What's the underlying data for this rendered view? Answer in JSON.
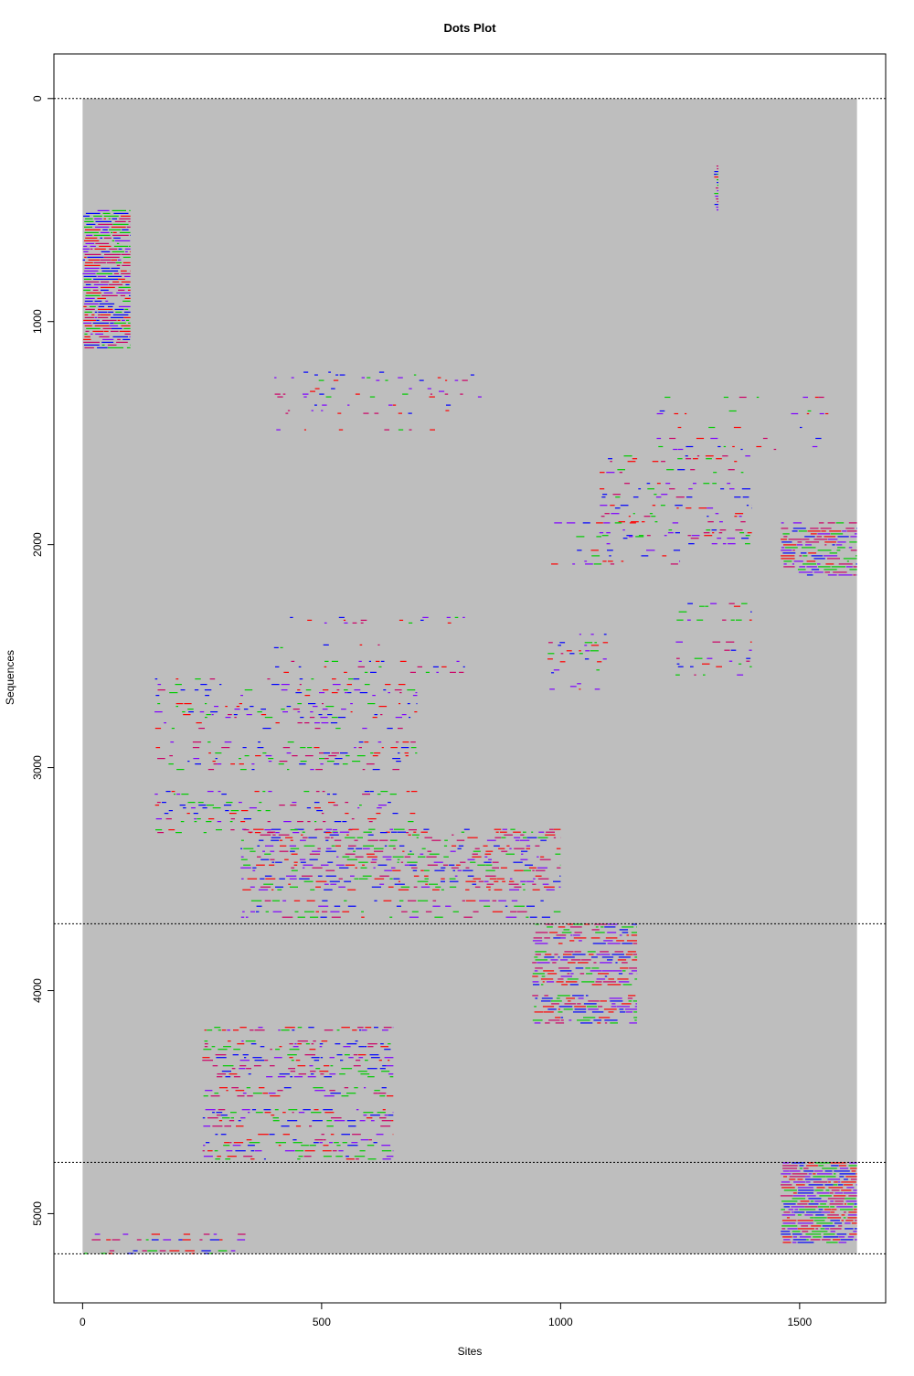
{
  "chart_data": {
    "type": "heatmap",
    "title": "Dots Plot",
    "xlabel": "Sites",
    "ylabel": "Sequences",
    "xlim": [
      -60,
      1680
    ],
    "ylim": [
      5400,
      -200
    ],
    "x_ticks": [
      0,
      500,
      1000,
      1500
    ],
    "y_ticks": [
      0,
      1000,
      2000,
      3000,
      4000,
      5000
    ],
    "background_region": {
      "x": [
        0,
        1620
      ],
      "y": [
        0,
        5180
      ],
      "color": "#bebebe"
    },
    "reference_lines": [
      0,
      3700,
      4770,
      5180
    ],
    "colors": {
      "red": "#ff0000",
      "green": "#00cc00",
      "blue": "#0000ff",
      "magenta": "#cc0066",
      "purple": "#7f00ff",
      "background": "#bebebe",
      "frame": "#000000"
    },
    "dense_blocks": [
      {
        "x": [
          0,
          100
        ],
        "y": [
          500,
          1120
        ],
        "density": 0.9
      },
      {
        "x": [
          1460,
          1620
        ],
        "y": [
          4770,
          5130
        ],
        "density": 0.9
      },
      {
        "x": [
          1460,
          1620
        ],
        "y": [
          1900,
          2150
        ],
        "density": 0.75
      },
      {
        "x": [
          940,
          1160
        ],
        "y": [
          3700,
          4150
        ],
        "density": 0.7
      },
      {
        "x": [
          330,
          1000
        ],
        "y": [
          3250,
          3700
        ],
        "density": 0.55
      },
      {
        "x": [
          250,
          650
        ],
        "y": [
          4150,
          4770
        ],
        "density": 0.55
      },
      {
        "x": [
          150,
          700
        ],
        "y": [
          2600,
          3300
        ],
        "density": 0.4
      },
      {
        "x": [
          1080,
          1400
        ],
        "y": [
          1600,
          2000
        ],
        "density": 0.4
      },
      {
        "x": [
          980,
          1250
        ],
        "y": [
          1900,
          2100
        ],
        "density": 0.45
      },
      {
        "x": [
          1200,
          1560
        ],
        "y": [
          1300,
          1600
        ],
        "density": 0.35
      },
      {
        "x": [
          1240,
          1400
        ],
        "y": [
          2250,
          2600
        ],
        "density": 0.4
      },
      {
        "x": [
          970,
          1100
        ],
        "y": [
          2400,
          2650
        ],
        "density": 0.4
      },
      {
        "x": [
          0,
          350
        ],
        "y": [
          5090,
          5180
        ],
        "density": 0.5
      },
      {
        "x": [
          1320,
          1330
        ],
        "y": [
          300,
          500
        ],
        "density": 1.0
      },
      {
        "x": [
          400,
          850
        ],
        "y": [
          1200,
          1500
        ],
        "density": 0.25
      },
      {
        "x": [
          400,
          800
        ],
        "y": [
          2300,
          2600
        ],
        "density": 0.3
      }
    ]
  }
}
